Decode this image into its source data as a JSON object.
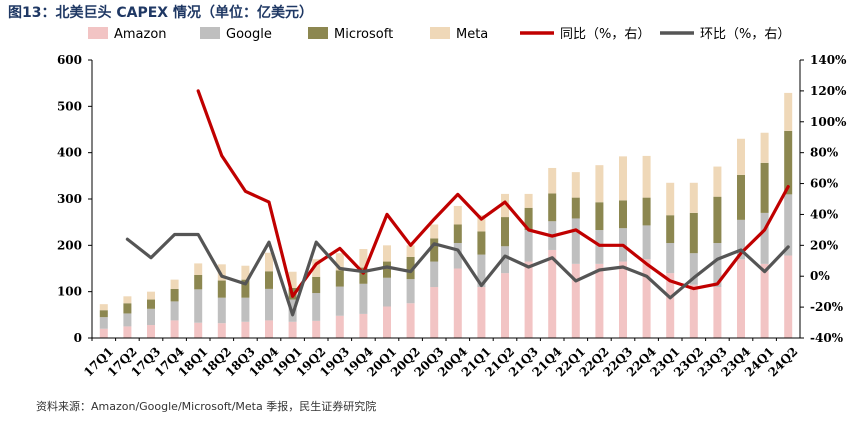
{
  "figure": {
    "title": "图13：北美巨头 CAPEX 情况（单位：亿美元）",
    "source": "资料来源：Amazon/Google/Microsoft/Meta 季报，民生证券研究院"
  },
  "colors": {
    "amazon": "#f2c4c4",
    "google": "#bfbfbf",
    "microsoft": "#8c8750",
    "meta": "#efd8b8",
    "yoy": "#c00000",
    "qoq": "#555555"
  },
  "chart_data": {
    "type": "bar",
    "stacked": true,
    "categories": [
      "17Q1",
      "17Q2",
      "17Q3",
      "17Q4",
      "18Q1",
      "18Q2",
      "18Q3",
      "18Q4",
      "19Q1",
      "19Q2",
      "19Q3",
      "19Q4",
      "20Q1",
      "20Q2",
      "20Q3",
      "20Q4",
      "21Q1",
      "21Q2",
      "21Q3",
      "21Q4",
      "22Q1",
      "22Q2",
      "22Q3",
      "22Q4",
      "23Q1",
      "23Q2",
      "23Q3",
      "23Q4",
      "24Q1",
      "24Q2"
    ],
    "series": [
      {
        "name": "Amazon",
        "type": "bar",
        "axis": "left",
        "values": [
          20,
          25,
          28,
          38,
          33,
          32,
          35,
          38,
          35,
          37,
          48,
          52,
          68,
          75,
          110,
          150,
          110,
          140,
          165,
          190,
          160,
          160,
          165,
          170,
          140,
          115,
          110,
          170,
          160,
          178
        ]
      },
      {
        "name": "Google",
        "type": "bar",
        "axis": "left",
        "values": [
          25,
          28,
          35,
          41,
          72,
          55,
          52,
          68,
          48,
          60,
          63,
          65,
          62,
          52,
          55,
          55,
          70,
          58,
          68,
          62,
          98,
          73,
          72,
          73,
          65,
          68,
          95,
          85,
          110,
          132
        ]
      },
      {
        "name": "Microsoft",
        "type": "bar",
        "axis": "left",
        "values": [
          15,
          22,
          20,
          27,
          31,
          37,
          39,
          38,
          25,
          35,
          35,
          35,
          35,
          48,
          50,
          40,
          50,
          63,
          48,
          60,
          45,
          60,
          60,
          60,
          60,
          87,
          100,
          97,
          108,
          137
        ]
      },
      {
        "name": "Meta",
        "type": "bar",
        "axis": "left",
        "values": [
          13,
          15,
          17,
          20,
          25,
          35,
          30,
          40,
          35,
          38,
          37,
          40,
          35,
          25,
          30,
          40,
          35,
          50,
          30,
          55,
          55,
          80,
          95,
          90,
          70,
          65,
          65,
          78,
          65,
          82
        ]
      },
      {
        "name": "同比（%，右）",
        "type": "line",
        "axis": "right",
        "values": [
          null,
          null,
          null,
          null,
          120,
          78,
          55,
          48,
          -13,
          8,
          18,
          2,
          40,
          20,
          37,
          53,
          37,
          48,
          30,
          26,
          30,
          20,
          20,
          8,
          -3,
          -8,
          -5,
          15,
          30,
          58
        ]
      },
      {
        "name": "环比（%，右）",
        "type": "line",
        "axis": "right",
        "values": [
          null,
          24,
          12,
          27,
          27,
          0,
          -5,
          22,
          -25,
          22,
          5,
          3,
          6,
          3,
          21,
          17,
          -6,
          13,
          6,
          12,
          -3,
          4,
          6,
          0,
          -14,
          -1,
          11,
          17,
          3,
          19
        ]
      }
    ],
    "left_axis": {
      "min": 0,
      "max": 600,
      "step": 100,
      "ticks": [
        "0",
        "100",
        "200",
        "300",
        "400",
        "500",
        "600"
      ]
    },
    "right_axis": {
      "min": -40,
      "max": 140,
      "step": 20,
      "ticks": [
        "-40%",
        "-20%",
        "0%",
        "20%",
        "40%",
        "60%",
        "80%",
        "100%",
        "120%",
        "140%"
      ]
    },
    "legend_position": "top",
    "grid": false
  }
}
